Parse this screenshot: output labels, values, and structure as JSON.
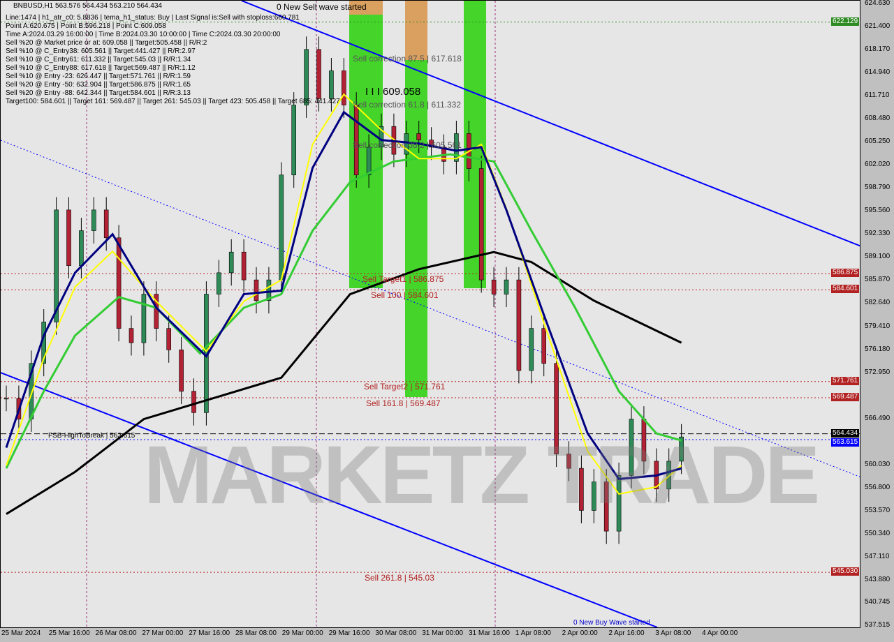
{
  "header": {
    "symbol_line": "BNBUSD,H1  563.576 564.434 563.210 564.434",
    "lines": [
      "Line:1474 | h1_atr_c0: 5.8836 | tema_h1_status: Buy | Last Signal is:Sell with stoploss:660.781",
      "Point A:620.675 | Point B:596.218 | Point C:609.058",
      "Time A:2024.03.29 16:00:00 | Time B:2024.03.30 10:00:00 | Time C:2024.03.30 20:00:00",
      "Sell %20 @ Market price or at: 609.058 || Target:505.458 || R/R:2",
      "Sell %10 @ C_Entry38: 605.561 || Target:441.427 || R/R:2.97",
      "Sell %10 @ C_Entry61: 611.332 || Target:545.03 || R/R:1.34",
      "Sell %10 @ C_Entry88: 617.618 || Target:569.487 || R/R:1.12",
      "Sell %10 @ Entry -23: 626.447 || Target:571.761 || R/R:1.59",
      "Sell %20 @ Entry -50: 632.904 || Target:586.875 || R/R:1.65",
      "Sell %20 @ Entry -88: 642.344 || Target:584.601 || R/R:3.13",
      "Target100: 584.601 || Target 161: 569.487 || Target 261: 545.03 || Target 423: 505.458 || Target 685: 441.427"
    ]
  },
  "annotations": {
    "new_sell": "0 New Sell wave started",
    "new_buy": "0 New Buy Wave started",
    "c_point": "I I I 609.058",
    "corr875": "Sell correction 87.5 | 617.618",
    "corr618": "Sell correction 61.8 | 611.332",
    "corr382": "Sell correction 38.2 | 605.561",
    "target1": "Sell Target1 | 586.875",
    "s100": "Sell 100 | 584.601",
    "target2": "Sell Target2 | 571.761",
    "s1618": "Sell 161.8 | 569.487",
    "s2618": "Sell 261.8 | 545.03",
    "fsb": "FSB-HighToBreak | 563.615"
  },
  "watermark": "MARKETZ TRADE",
  "colors": {
    "bull": "#2e8b57",
    "bear": "#b22234",
    "ma200": "#000000",
    "ma_green": "#33cc33",
    "ma_navy": "#000080",
    "ma_yellow": "#ffff00",
    "trend": "#0000ff",
    "level": "#b22222",
    "band": "#44d42a"
  },
  "chart_data": {
    "type": "candlestick",
    "title": "BNBUSD,H1",
    "ylim": [
      537.515,
      624.63
    ],
    "y_ticks": [
      "624.630",
      "621.400",
      "618.170",
      "614.940",
      "611.710",
      "608.480",
      "605.250",
      "602.020",
      "598.790",
      "595.560",
      "592.330",
      "589.100",
      "585.870",
      "582.640",
      "579.410",
      "576.180",
      "572.950",
      "566.490",
      "560.030",
      "556.800",
      "553.570",
      "550.340",
      "547.110",
      "543.880",
      "540.745",
      "537.515"
    ],
    "x_ticks": [
      "25 Mar 2024",
      "25 Mar 16:00",
      "26 Mar 08:00",
      "27 Mar 00:00",
      "27 Mar 16:00",
      "28 Mar 08:00",
      "29 Mar 00:00",
      "29 Mar 16:00",
      "30 Mar 08:00",
      "31 Mar 00:00",
      "31 Mar 16:00",
      "1 Apr 08:00",
      "2 Apr 00:00",
      "2 Apr 16:00",
      "3 Apr 08:00",
      "4 Apr 00:00"
    ],
    "closes": [
      569.4,
      566.5,
      574.3,
      580.1,
      595.8,
      588,
      592.9,
      595.8,
      591.9,
      579.2,
      577.2,
      584,
      579.2,
      576.2,
      570.4,
      567.4,
      584,
      587,
      589.9,
      586,
      583.1,
      586,
      600.7,
      610.5,
      618.3,
      611.4,
      615.3,
      610.5,
      600.7,
      604.6,
      607.5,
      603.6,
      606.5,
      605.6,
      604.6,
      602.6,
      606.5,
      601.6,
      586,
      584,
      586,
      573.3,
      579.2,
      574.3,
      561.6,
      559.6,
      553.7,
      557.7,
      550.8,
      558.6,
      566.5,
      560.6,
      556.7,
      560.6,
      564.0
    ],
    "ma_black": [
      [
        0,
        553.2
      ],
      [
        5.5,
        559.1
      ],
      [
        11,
        566.5
      ],
      [
        16.5,
        569.4
      ],
      [
        22,
        572.3
      ],
      [
        27.5,
        584
      ],
      [
        33,
        587.5
      ],
      [
        39,
        589.9
      ],
      [
        42,
        588.5
      ],
      [
        47,
        583.1
      ],
      [
        54,
        577.2
      ]
    ],
    "ma_green": [
      [
        0,
        559.6
      ],
      [
        3,
        570.4
      ],
      [
        5.5,
        578.2
      ],
      [
        9,
        583.6
      ],
      [
        12,
        582.1
      ],
      [
        15.5,
        575.7
      ],
      [
        19,
        582.1
      ],
      [
        22,
        584
      ],
      [
        24.5,
        592.9
      ],
      [
        27.5,
        599.7
      ],
      [
        31,
        602.6
      ],
      [
        35.5,
        603.6
      ],
      [
        39,
        602.6
      ],
      [
        42,
        592.9
      ],
      [
        45.5,
        582.1
      ],
      [
        49,
        570.4
      ],
      [
        52,
        564.5
      ],
      [
        54,
        563.5
      ]
    ],
    "ma_navy": [
      [
        0,
        562.5
      ],
      [
        3,
        578.2
      ],
      [
        5.5,
        587
      ],
      [
        8.5,
        592.4
      ],
      [
        12,
        582.1
      ],
      [
        16,
        575.3
      ],
      [
        19,
        584
      ],
      [
        22,
        584.5
      ],
      [
        24.5,
        601.7
      ],
      [
        27,
        609.5
      ],
      [
        30,
        605.6
      ],
      [
        33,
        605.1
      ],
      [
        36,
        604.1
      ],
      [
        38,
        604.6
      ],
      [
        40,
        595.8
      ],
      [
        43,
        581.1
      ],
      [
        46.5,
        564.5
      ],
      [
        49,
        558.1
      ],
      [
        52,
        558.6
      ],
      [
        54,
        559.6
      ]
    ],
    "ma_yellow": [
      [
        0,
        560
      ],
      [
        3,
        575
      ],
      [
        5.5,
        585
      ],
      [
        8.5,
        590
      ],
      [
        12,
        583
      ],
      [
        16,
        576
      ],
      [
        19,
        583
      ],
      [
        22,
        586
      ],
      [
        24.5,
        605
      ],
      [
        27,
        612
      ],
      [
        30,
        607
      ],
      [
        33,
        603
      ],
      [
        36,
        603
      ],
      [
        38,
        605
      ],
      [
        40,
        596
      ],
      [
        43,
        580
      ],
      [
        46.5,
        562
      ],
      [
        49,
        556
      ],
      [
        52,
        557
      ],
      [
        54,
        560
      ]
    ],
    "levels": [
      {
        "price": 622.129,
        "label": "622.129",
        "color": "#2e8b22"
      },
      {
        "price": 586.875,
        "label": "586.875",
        "color": "#b22222"
      },
      {
        "price": 584.601,
        "label": "584.601",
        "color": "#b22222"
      },
      {
        "price": 571.761,
        "label": "571.761",
        "color": "#b22222"
      },
      {
        "price": 569.487,
        "label": "569.487",
        "color": "#b22222"
      },
      {
        "price": 564.434,
        "label": "564.434",
        "color": "#000000"
      },
      {
        "price": 563.615,
        "label": "563.615",
        "color": "#0000ff"
      },
      {
        "price": 545.03,
        "label": "545.030",
        "color": "#b22222"
      }
    ]
  }
}
